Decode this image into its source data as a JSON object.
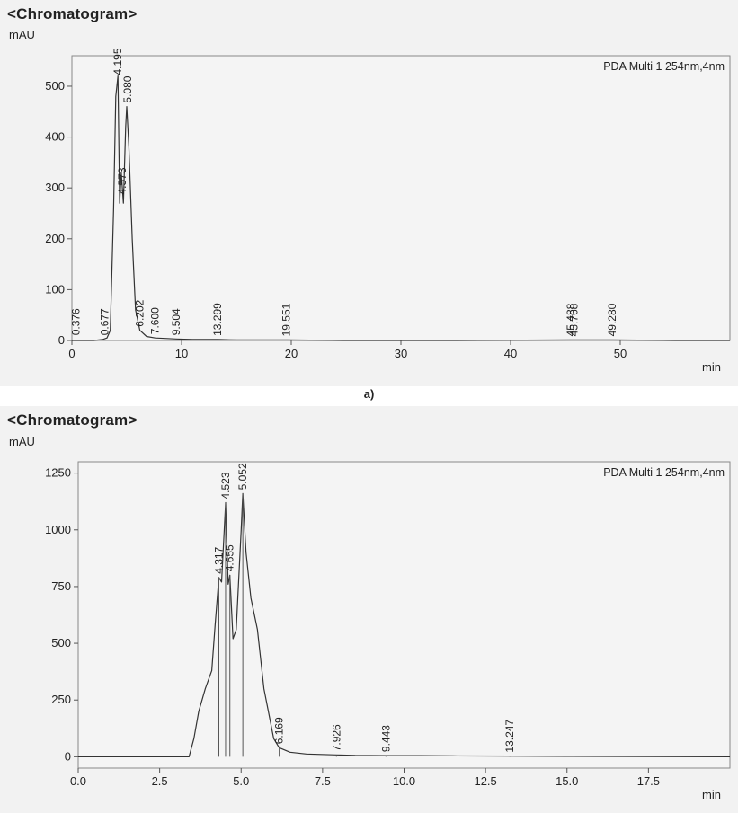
{
  "chart_data": [
    {
      "type": "line",
      "title": "<Chromatogram>",
      "ylabel": "mAU",
      "xlabel": "min",
      "legend": "PDA Multi 1 254nm,4nm",
      "legend_position": "top-right",
      "caption": "a)",
      "xlim": [
        0,
        60
      ],
      "ylim": [
        0,
        560
      ],
      "xticks": [
        0,
        10,
        20,
        30,
        40,
        50
      ],
      "yticks": [
        0,
        100,
        200,
        300,
        400,
        500
      ],
      "tick_labels_x": [
        "0",
        "10",
        "20",
        "30",
        "40",
        "50"
      ],
      "tick_labels_y": [
        "0",
        "100",
        "200",
        "300",
        "400",
        "500"
      ],
      "grid": false,
      "series": [
        {
          "x": [
            0,
            0.4,
            1.0,
            2.0,
            2.8,
            3.2,
            3.5,
            3.8,
            4.0,
            4.2,
            4.35,
            4.5,
            4.7,
            4.9,
            5.0,
            5.2,
            5.5,
            5.8,
            6.2,
            6.8,
            7.6,
            8.5,
            9.5,
            11,
            13.3,
            15,
            19.6,
            25,
            35,
            45.5,
            45.8,
            49.3,
            55,
            60
          ],
          "y": [
            0,
            0,
            0,
            0,
            2,
            5,
            20,
            260,
            480,
            520,
            270,
            330,
            270,
            420,
            460,
            380,
            200,
            60,
            20,
            8,
            5,
            4,
            3,
            2,
            2,
            1,
            1,
            0,
            0,
            1,
            1,
            1,
            0,
            0
          ]
        }
      ],
      "peak_labels": [
        {
          "text": "0.376",
          "x": 0.376,
          "y": 3
        },
        {
          "text": "0.677",
          "x": 3.0,
          "y": 3
        },
        {
          "text": "4.195",
          "x": 4.195,
          "y": 515
        },
        {
          "text": "5.080",
          "x": 5.08,
          "y": 460
        },
        {
          "text": "4.573",
          "x": 4.573,
          "y": 280
        },
        {
          "text": "6.202",
          "x": 6.202,
          "y": 20
        },
        {
          "text": "7.600",
          "x": 7.6,
          "y": 5
        },
        {
          "text": "9.504",
          "x": 9.504,
          "y": 3
        },
        {
          "text": "13.299",
          "x": 13.299,
          "y": 2
        },
        {
          "text": "19.551",
          "x": 19.551,
          "y": 1
        },
        {
          "text": "45.488",
          "x": 45.488,
          "y": 1
        },
        {
          "text": "45.768",
          "x": 45.768,
          "y": 1
        },
        {
          "text": "49.280",
          "x": 49.28,
          "y": 1
        }
      ]
    },
    {
      "type": "line",
      "title": "<Chromatogram>",
      "ylabel": "mAU",
      "xlabel": "min",
      "legend": "PDA Multi 1 254nm,4nm",
      "legend_position": "top-right",
      "xlim": [
        0,
        20
      ],
      "ylim": [
        -50,
        1300
      ],
      "xticks": [
        0,
        2.5,
        5,
        7.5,
        10,
        12.5,
        15,
        17.5
      ],
      "yticks": [
        0,
        250,
        500,
        750,
        1000,
        1250
      ],
      "tick_labels_x": [
        "0.0",
        "2.5",
        "5.0",
        "7.5",
        "10.0",
        "12.5",
        "15.0",
        "17.5"
      ],
      "tick_labels_y": [
        "0",
        "250",
        "500",
        "750",
        "1000",
        "1250"
      ],
      "grid": false,
      "series": [
        {
          "x": [
            0,
            3.4,
            3.55,
            3.7,
            3.9,
            4.1,
            4.2,
            4.317,
            4.4,
            4.523,
            4.6,
            4.655,
            4.75,
            4.85,
            5.0,
            5.052,
            5.15,
            5.3,
            5.5,
            5.7,
            6.0,
            6.169,
            6.5,
            7.0,
            7.926,
            8.5,
            9.443,
            10.5,
            11.5,
            13.247,
            15,
            20
          ],
          "y": [
            0,
            0,
            80,
            200,
            300,
            380,
            580,
            790,
            770,
            1120,
            760,
            800,
            520,
            560,
            1000,
            1160,
            900,
            700,
            560,
            300,
            80,
            40,
            20,
            12,
            8,
            6,
            5,
            5,
            4,
            3,
            2,
            0
          ]
        }
      ],
      "peak_labels": [
        {
          "text": "4.317",
          "x": 4.317,
          "y": 790
        },
        {
          "text": "4.523",
          "x": 4.523,
          "y": 1120
        },
        {
          "text": "4.655",
          "x": 4.655,
          "y": 800
        },
        {
          "text": "5.052",
          "x": 5.052,
          "y": 1160
        },
        {
          "text": "6.169",
          "x": 6.169,
          "y": 40
        },
        {
          "text": "7.926",
          "x": 7.926,
          "y": 8
        },
        {
          "text": "9.443",
          "x": 9.443,
          "y": 5
        },
        {
          "text": "13.247",
          "x": 13.247,
          "y": 3
        }
      ]
    }
  ]
}
